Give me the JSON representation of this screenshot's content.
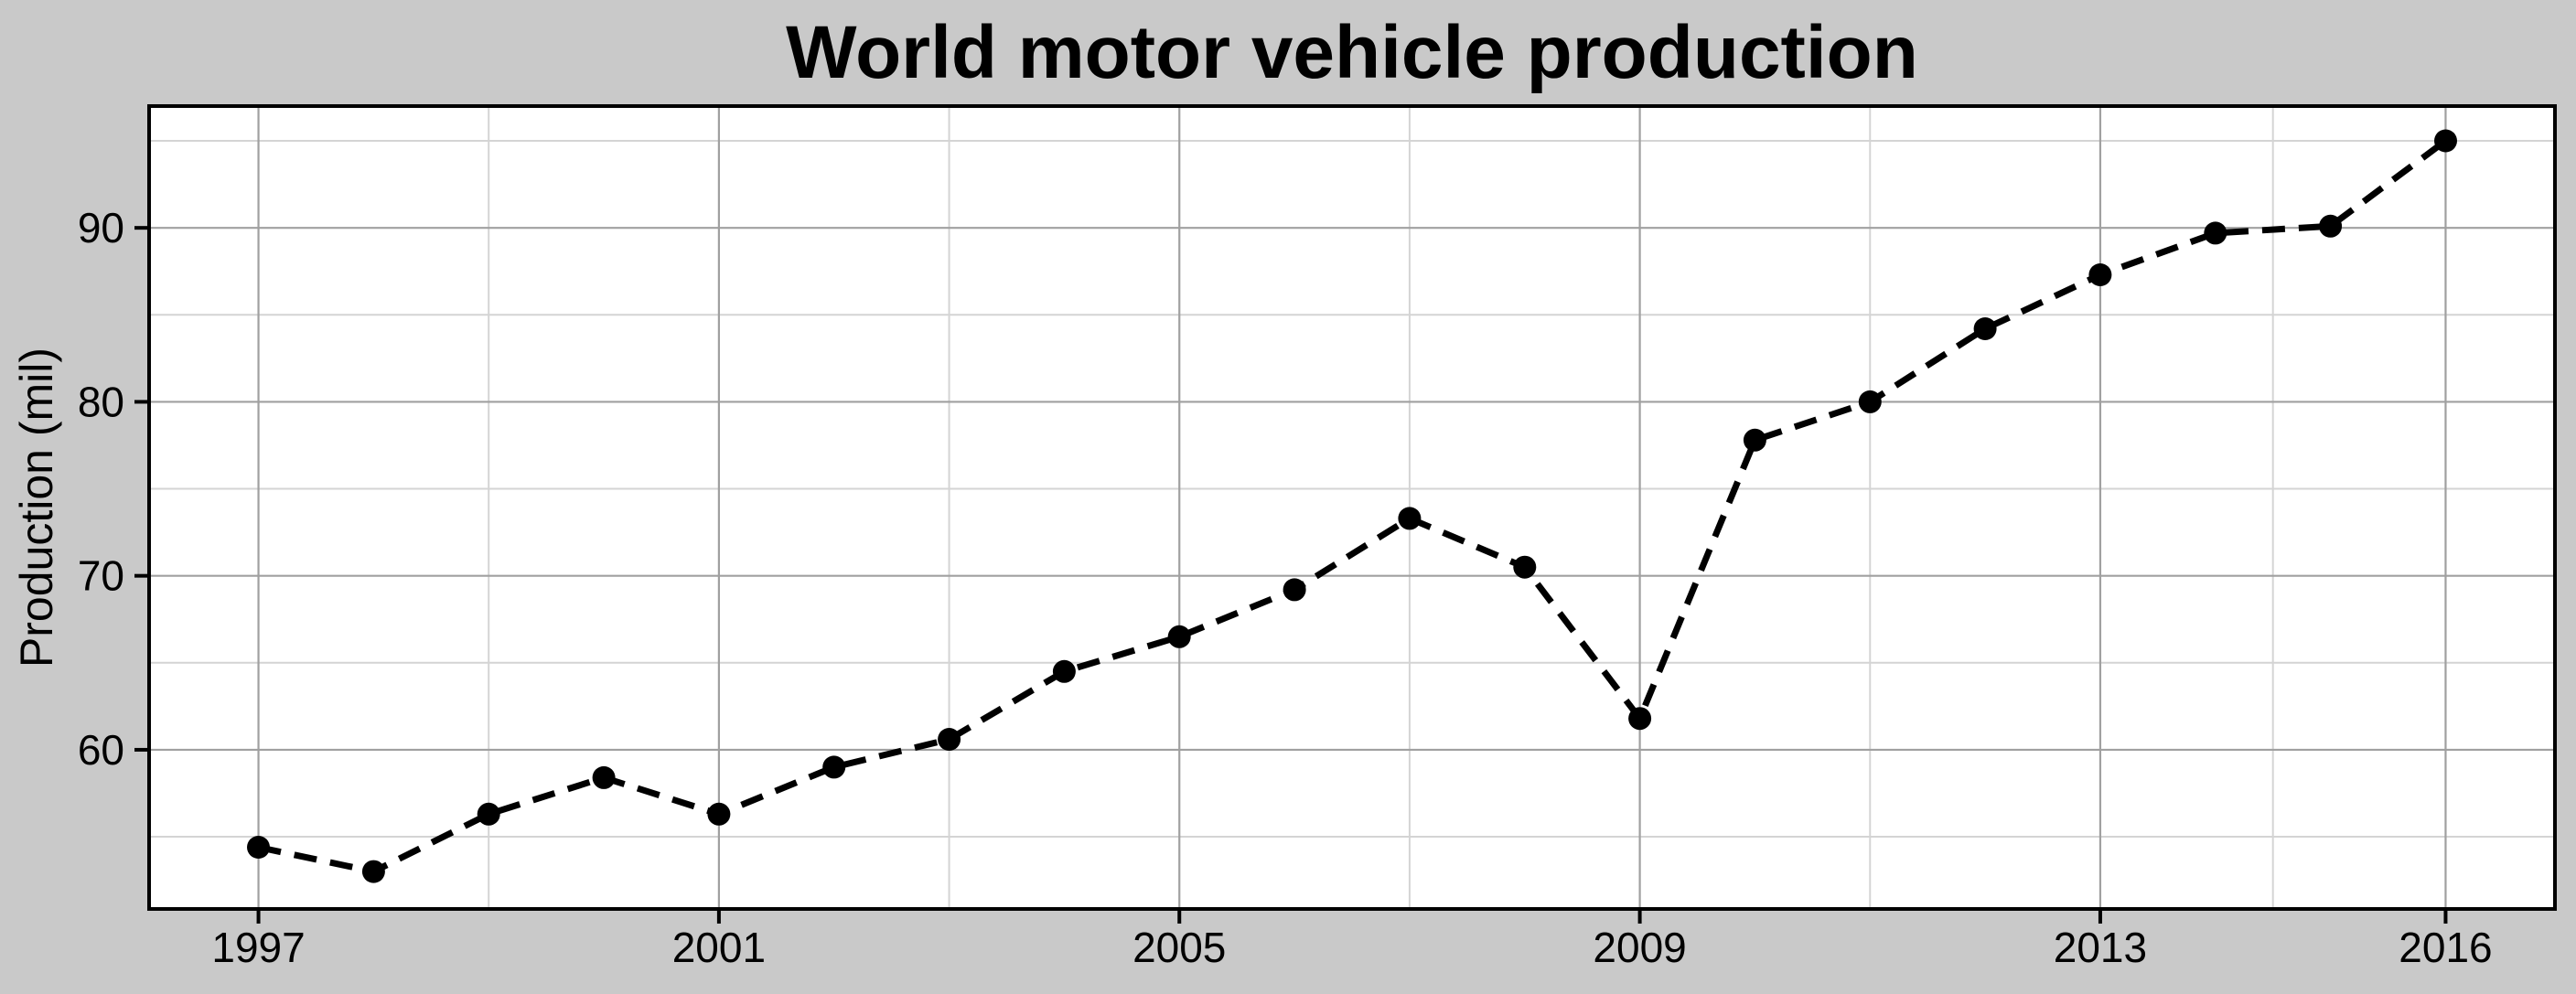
{
  "chart_data": {
    "type": "line",
    "title": "World motor vehicle production",
    "xlabel": "",
    "ylabel": "Production (mil)",
    "x": [
      1997,
      1998,
      1999,
      2000,
      2001,
      2002,
      2003,
      2004,
      2005,
      2006,
      2007,
      2008,
      2009,
      2010,
      2011,
      2012,
      2013,
      2014,
      2015,
      2016
    ],
    "series": [
      {
        "name": "World motor vehicle production",
        "values": [
          54.4,
          53.0,
          56.3,
          58.4,
          56.3,
          59.0,
          60.6,
          64.5,
          66.5,
          69.2,
          73.3,
          70.5,
          61.8,
          77.8,
          80.0,
          84.2,
          87.3,
          89.7,
          90.1,
          95.0
        ]
      }
    ],
    "x_ticks": {
      "values": [
        1997,
        2001,
        2005,
        2009,
        2013,
        2016
      ],
      "labels": [
        "1997",
        "2001",
        "2005",
        "2009",
        "2013",
        "2016"
      ]
    },
    "y_ticks": {
      "values": [
        60,
        70,
        80,
        90
      ],
      "labels": [
        "60",
        "70",
        "80",
        "90"
      ]
    },
    "x_minor": [
      1999,
      2003,
      2007,
      2011,
      2014.5
    ],
    "y_minor": [
      55,
      65,
      75,
      85,
      95
    ],
    "xlim": [
      1996.05,
      2016.95
    ],
    "ylim": [
      50.85,
      97.0
    ],
    "grid": "major-and-minor",
    "legend": "none",
    "line_style": "dashed",
    "marker": "filled-circle",
    "colors": {
      "background": "#c9c9c9",
      "panel": "#ffffff",
      "panel_border": "#000000",
      "grid_major": "#a0a0a0",
      "grid_minor": "#d4d4d4",
      "line": "#000000",
      "marker": "#000000",
      "tick": "#000000",
      "text": "#000000"
    }
  }
}
